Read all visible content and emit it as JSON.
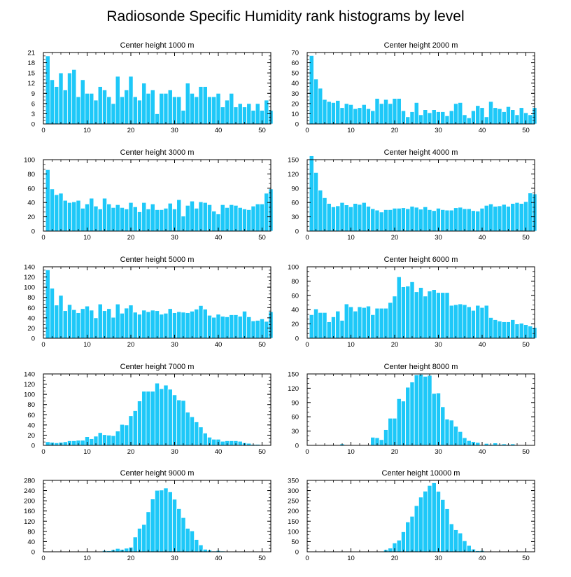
{
  "title": "Radiosonde Specific Humidity rank histograms by level",
  "colors": {
    "bar": "#1ec8f8",
    "bar_edge": "#ffffff",
    "axis": "#000000"
  },
  "chart_data": [
    {
      "type": "bar",
      "title": "Center height 1000 m",
      "xlim": [
        0,
        52
      ],
      "ylim": [
        0,
        21
      ],
      "xticks": [
        0,
        10,
        20,
        30,
        40,
        50
      ],
      "yticks": [
        0,
        3,
        6,
        9,
        12,
        15,
        18,
        21
      ],
      "values": [
        20,
        13,
        11,
        15,
        10,
        15,
        16,
        8,
        13,
        9,
        9,
        7,
        11,
        10,
        8,
        6,
        14,
        8,
        10,
        14,
        8,
        7,
        12,
        9,
        10,
        3,
        9,
        9,
        10,
        8,
        8,
        4,
        12,
        9,
        8,
        11,
        11,
        8,
        8,
        9,
        5,
        7,
        9,
        5,
        6,
        5,
        6,
        4,
        6,
        4,
        7,
        4
      ]
    },
    {
      "type": "bar",
      "title": "Center height 2000 m",
      "xlim": [
        0,
        52
      ],
      "ylim": [
        0,
        70
      ],
      "xticks": [
        0,
        10,
        20,
        30,
        40,
        50
      ],
      "yticks": [
        0,
        10,
        20,
        30,
        40,
        50,
        60,
        70
      ],
      "values": [
        67,
        44,
        35,
        24,
        22,
        21,
        23,
        16,
        20,
        19,
        15,
        16,
        19,
        15,
        13,
        25,
        20,
        24,
        20,
        25,
        25,
        13,
        7,
        12,
        21,
        9,
        14,
        11,
        14,
        12,
        12,
        8,
        13,
        20,
        21,
        9,
        6,
        13,
        18,
        16,
        7,
        22,
        16,
        15,
        12,
        17,
        14,
        9,
        16,
        11,
        9,
        16
      ]
    },
    {
      "type": "bar",
      "title": "Center height 3000 m",
      "xlim": [
        0,
        52
      ],
      "ylim": [
        0,
        100
      ],
      "xticks": [
        0,
        10,
        20,
        30,
        40,
        50
      ],
      "yticks": [
        0,
        20,
        40,
        60,
        80,
        100
      ],
      "values": [
        86,
        59,
        51,
        53,
        43,
        40,
        41,
        43,
        32,
        38,
        46,
        35,
        31,
        46,
        38,
        33,
        37,
        33,
        31,
        40,
        34,
        27,
        40,
        31,
        38,
        30,
        30,
        32,
        39,
        31,
        44,
        21,
        36,
        42,
        32,
        41,
        40,
        37,
        28,
        24,
        37,
        33,
        37,
        36,
        33,
        31,
        30,
        35,
        38,
        38,
        53,
        59
      ]
    },
    {
      "type": "bar",
      "title": "Center height 4000 m",
      "xlim": [
        0,
        52
      ],
      "ylim": [
        0,
        150
      ],
      "xticks": [
        0,
        10,
        20,
        30,
        40,
        50
      ],
      "yticks": [
        0,
        30,
        60,
        90,
        120,
        150
      ],
      "values": [
        158,
        123,
        86,
        70,
        58,
        51,
        53,
        60,
        55,
        51,
        58,
        56,
        60,
        52,
        47,
        44,
        40,
        45,
        45,
        48,
        48,
        49,
        47,
        52,
        50,
        46,
        51,
        45,
        43,
        48,
        45,
        44,
        44,
        49,
        50,
        47,
        47,
        43,
        42,
        48,
        54,
        57,
        52,
        53,
        56,
        52,
        58,
        60,
        58,
        62,
        80,
        78
      ]
    },
    {
      "type": "bar",
      "title": "Center height 5000 m",
      "xlim": [
        0,
        52
      ],
      "ylim": [
        0,
        140
      ],
      "xticks": [
        0,
        10,
        20,
        30,
        40,
        50
      ],
      "yticks": [
        0,
        20,
        40,
        60,
        80,
        100,
        120,
        140
      ],
      "values": [
        134,
        98,
        65,
        84,
        54,
        66,
        56,
        50,
        58,
        63,
        55,
        40,
        67,
        54,
        58,
        41,
        67,
        49,
        59,
        65,
        51,
        47,
        55,
        52,
        55,
        54,
        47,
        49,
        58,
        50,
        52,
        51,
        50,
        53,
        57,
        64,
        57,
        45,
        41,
        47,
        43,
        42,
        46,
        46,
        43,
        53,
        42,
        34,
        35,
        38,
        33,
        52
      ]
    },
    {
      "type": "bar",
      "title": "Center height 6000 m",
      "xlim": [
        0,
        52
      ],
      "ylim": [
        0,
        100
      ],
      "xticks": [
        0,
        10,
        20,
        30,
        40,
        50
      ],
      "yticks": [
        0,
        20,
        40,
        60,
        80,
        100
      ],
      "values": [
        33,
        41,
        36,
        36,
        23,
        30,
        38,
        25,
        48,
        44,
        38,
        44,
        43,
        45,
        33,
        42,
        42,
        42,
        50,
        59,
        86,
        72,
        73,
        79,
        65,
        71,
        59,
        66,
        68,
        64,
        64,
        64,
        46,
        47,
        48,
        47,
        44,
        39,
        46,
        43,
        46,
        29,
        26,
        24,
        23,
        23,
        26,
        20,
        21,
        19,
        17,
        15
      ]
    },
    {
      "type": "bar",
      "title": "Center height 7000 m",
      "xlim": [
        0,
        52
      ],
      "ylim": [
        0,
        140
      ],
      "xticks": [
        0,
        10,
        20,
        30,
        40,
        50
      ],
      "yticks": [
        0,
        20,
        40,
        60,
        80,
        100,
        120,
        140
      ],
      "values": [
        7,
        6,
        5,
        6,
        7,
        9,
        9,
        10,
        10,
        17,
        13,
        18,
        25,
        21,
        20,
        19,
        28,
        41,
        40,
        58,
        68,
        87,
        106,
        106,
        106,
        122,
        111,
        118,
        110,
        99,
        89,
        88,
        65,
        56,
        46,
        36,
        24,
        16,
        12,
        12,
        8,
        9,
        9,
        9,
        8,
        5,
        4,
        2,
        2,
        1,
        1,
        0
      ]
    },
    {
      "type": "bar",
      "title": "Center height 8000 m",
      "xlim": [
        0,
        52
      ],
      "ylim": [
        0,
        150
      ],
      "xticks": [
        0,
        10,
        20,
        30,
        40,
        50
      ],
      "yticks": [
        0,
        30,
        60,
        90,
        120,
        150
      ],
      "values": [
        1,
        0,
        0,
        1,
        1,
        0,
        1,
        3,
        1,
        0,
        1,
        0,
        1,
        1,
        17,
        16,
        12,
        33,
        57,
        57,
        98,
        93,
        122,
        133,
        148,
        149,
        145,
        147,
        109,
        110,
        81,
        55,
        53,
        40,
        29,
        16,
        10,
        8,
        6,
        1,
        4,
        2,
        5,
        2,
        3,
        2,
        3,
        1,
        1,
        1,
        0,
        0
      ]
    },
    {
      "type": "bar",
      "title": "Center height 9000 m",
      "xlim": [
        0,
        52
      ],
      "ylim": [
        0,
        280
      ],
      "xticks": [
        0,
        10,
        20,
        30,
        40,
        50
      ],
      "yticks": [
        0,
        40,
        80,
        120,
        160,
        200,
        240,
        280
      ],
      "values": [
        0,
        0,
        0,
        0,
        0,
        0,
        0,
        0,
        0,
        0,
        0,
        0,
        2,
        5,
        4,
        8,
        13,
        9,
        14,
        18,
        58,
        92,
        107,
        157,
        207,
        241,
        242,
        250,
        235,
        206,
        169,
        134,
        92,
        82,
        48,
        27,
        10,
        7,
        3,
        5,
        3,
        1,
        2,
        0,
        2,
        0,
        1,
        0,
        0,
        0,
        0,
        0
      ]
    },
    {
      "type": "bar",
      "title": "Center height 10000 m",
      "xlim": [
        0,
        52
      ],
      "ylim": [
        0,
        350
      ],
      "xticks": [
        0,
        10,
        20,
        30,
        40,
        50
      ],
      "yticks": [
        0,
        50,
        100,
        150,
        200,
        250,
        300,
        350
      ],
      "values": [
        0,
        0,
        0,
        0,
        0,
        0,
        0,
        0,
        0,
        0,
        0,
        0,
        0,
        0,
        0,
        0,
        3,
        10,
        18,
        43,
        57,
        98,
        146,
        174,
        226,
        268,
        297,
        325,
        338,
        296,
        256,
        211,
        137,
        108,
        92,
        54,
        31,
        13,
        5,
        6,
        3,
        1,
        0,
        0,
        0,
        0,
        0,
        0,
        0,
        0,
        0,
        0
      ]
    }
  ]
}
